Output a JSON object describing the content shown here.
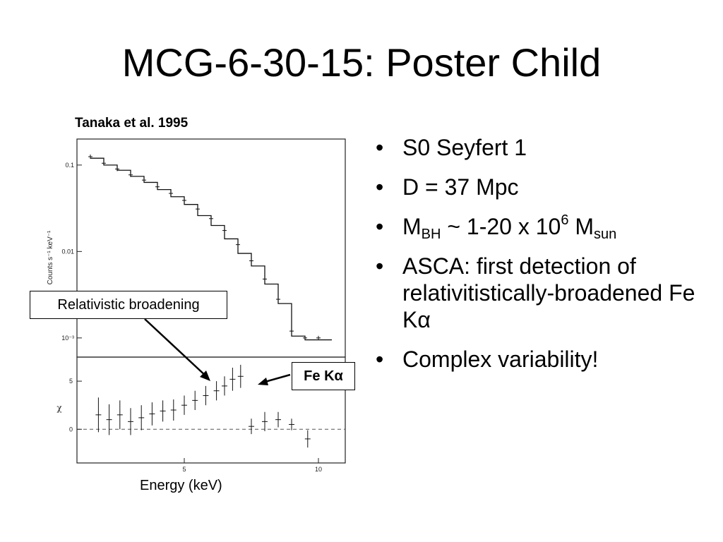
{
  "slide": {
    "title": "MCG-6-30-15: Poster Child",
    "citation": "Tanaka et al. 1995",
    "callouts": {
      "relativistic": "Relativistic broadening",
      "fe_prefix": "Fe K",
      "fe_symbol": "α"
    },
    "bullets": [
      {
        "text": "S0 Seyfert 1"
      },
      {
        "text": "D = 37 Mpc"
      },
      {
        "m": "M",
        "bh": "BH",
        "mid": " ~ 1-20 x 10",
        "exp": "6",
        "m2": " M",
        "sun": "sun"
      },
      {
        "text": "ASCA: first detection of relativitistically-broadened Fe K",
        "symbol": "α"
      },
      {
        "text": "Complex variability!"
      }
    ]
  },
  "chart_data": [
    {
      "type": "line",
      "panel": "spectrum",
      "ylabel": "Counts s⁻¹ keV⁻¹",
      "yscale": "log",
      "ylim": [
        0.0006,
        0.2
      ],
      "xlim": [
        1,
        11
      ],
      "yticks": [
        {
          "value": 0.1,
          "label": "0.1"
        },
        {
          "value": 0.01,
          "label": "0.01"
        },
        {
          "value": 0.001,
          "label": "10⁻³"
        }
      ],
      "series": [
        {
          "kind": "model-step",
          "x": [
            1.5,
            2,
            2.5,
            3,
            3.5,
            4,
            4.5,
            5,
            5.5,
            6,
            6.5,
            7,
            7.5,
            8,
            8.5,
            9,
            9.5,
            10
          ],
          "y": [
            0.12,
            0.1,
            0.087,
            0.074,
            0.063,
            0.052,
            0.043,
            0.035,
            0.026,
            0.02,
            0.014,
            0.0095,
            0.0068,
            0.0042,
            0.0025,
            0.00105,
            0.00095,
            0.00095
          ]
        },
        {
          "kind": "data",
          "x": [
            1.5,
            2,
            2.5,
            3,
            3.5,
            4,
            4.5,
            5,
            5.5,
            6,
            6.5,
            7,
            7.5,
            8,
            8.5,
            9,
            9.5,
            10
          ],
          "y": [
            0.125,
            0.105,
            0.09,
            0.077,
            0.067,
            0.056,
            0.047,
            0.039,
            0.031,
            0.024,
            0.0175,
            0.012,
            0.0078,
            0.0048,
            0.0028,
            0.0012,
            0.001,
            0.001
          ]
        }
      ]
    },
    {
      "type": "scatter",
      "panel": "residuals",
      "ylabel": "χ",
      "xlabel": "Energy (keV)",
      "xlim": [
        1,
        11
      ],
      "ylim": [
        -3.5,
        7.5
      ],
      "xticks": [
        {
          "value": 5,
          "label": "5"
        },
        {
          "value": 10,
          "label": "10"
        }
      ],
      "yticks": [
        {
          "value": 0,
          "label": "0"
        },
        {
          "value": 5,
          "label": "5"
        }
      ],
      "zero_line": true,
      "series": [
        {
          "kind": "residual",
          "x": [
            1.8,
            2.2,
            2.6,
            3.0,
            3.4,
            3.8,
            4.2,
            4.6,
            5.0,
            5.4,
            5.8,
            6.2,
            6.5,
            6.8,
            7.1,
            7.5,
            8.0,
            8.5,
            9.0,
            9.6
          ],
          "y": [
            1.5,
            1.0,
            1.5,
            0.8,
            1.2,
            1.6,
            1.9,
            2.0,
            2.5,
            3.0,
            3.5,
            4.0,
            4.5,
            5.2,
            5.5,
            0.3,
            0.8,
            1.0,
            0.5,
            -1.0
          ],
          "err": [
            1.8,
            1.6,
            1.5,
            1.4,
            1.3,
            1.2,
            1.1,
            1.1,
            1.0,
            1.0,
            1.0,
            1.0,
            1.0,
            1.2,
            1.2,
            0.8,
            1.0,
            0.8,
            0.6,
            0.9
          ]
        }
      ]
    }
  ]
}
